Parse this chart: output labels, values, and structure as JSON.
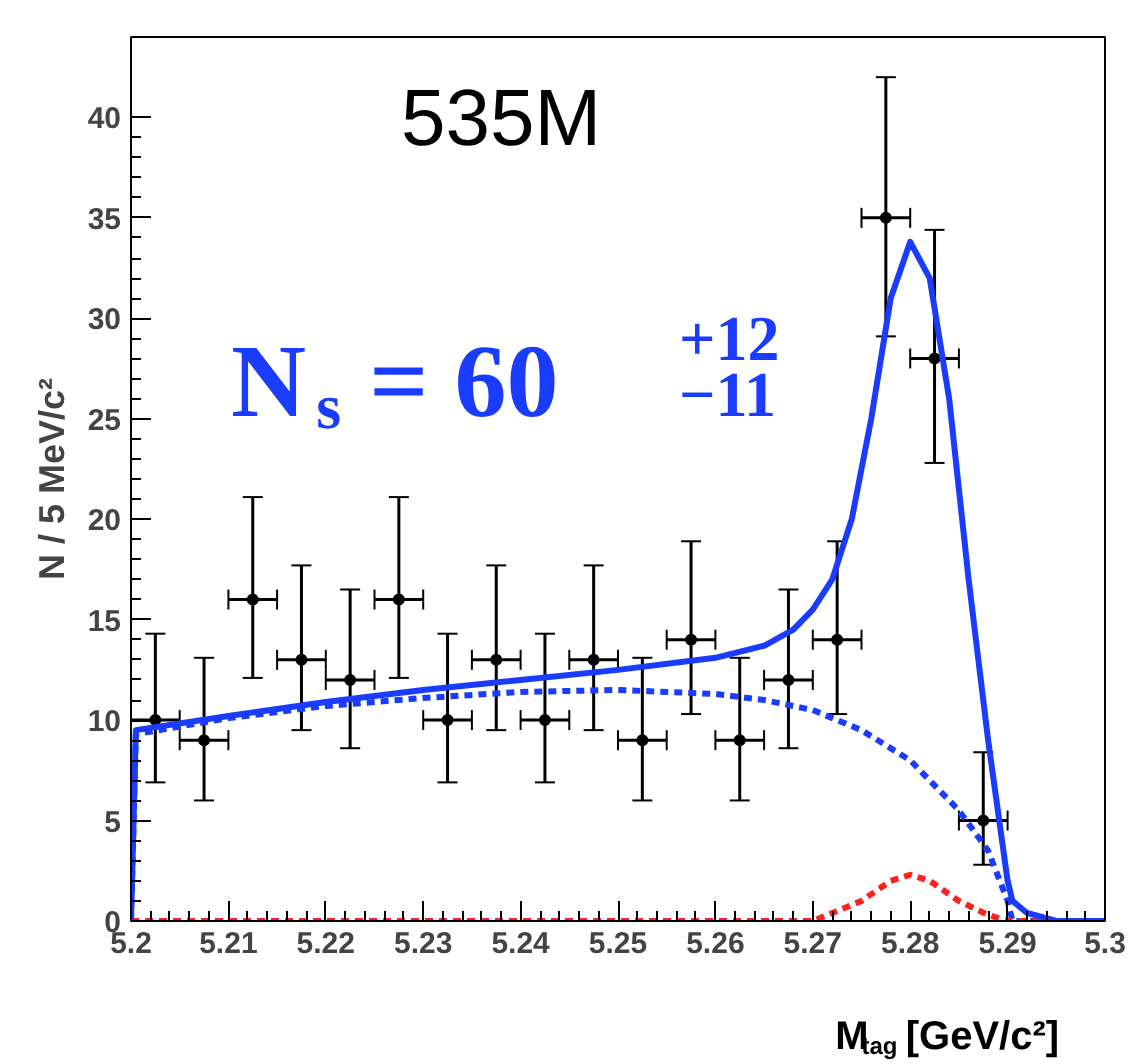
{
  "chart_data": {
    "type": "scatter",
    "xlabel": "M$_{tag}$ [GeV/c²]",
    "ylabel": "N / 5 MeV/c²",
    "annotations": [
      "535M",
      "N$_{s}$= 60$^{+12}$$_{−11}$"
    ],
    "xlim": [
      5.2,
      5.3
    ],
    "ylim": [
      0,
      44
    ],
    "xticks": [
      5.2,
      5.21,
      5.22,
      5.23,
      5.24,
      5.25,
      5.26,
      5.27,
      5.28,
      5.29,
      5.3
    ],
    "yticks": [
      0,
      5,
      10,
      15,
      20,
      25,
      30,
      35,
      40
    ],
    "grid": false,
    "series": [
      {
        "color": "#000000",
        "marker": "circle",
        "x": [
          5.2025,
          5.2075,
          5.2125,
          5.2175,
          5.2225,
          5.2275,
          5.2325,
          5.2375,
          5.2425,
          5.2475,
          5.2525,
          5.2575,
          5.2625,
          5.2675,
          5.2725,
          5.2775,
          5.2825,
          5.2875
        ],
        "values": [
          10,
          9,
          16,
          13,
          12,
          16,
          10,
          13,
          10,
          13,
          9,
          14,
          9,
          12,
          14,
          35,
          28,
          5
        ],
        "errors": [
          [
            6.9,
            14.3
          ],
          [
            6.0,
            13.1
          ],
          [
            12.1,
            21.1
          ],
          [
            9.5,
            17.7
          ],
          [
            8.6,
            16.5
          ],
          [
            12.1,
            21.1
          ],
          [
            6.9,
            14.3
          ],
          [
            9.5,
            17.7
          ],
          [
            6.9,
            14.3
          ],
          [
            9.5,
            17.7
          ],
          [
            6.0,
            13.1
          ],
          [
            10.3,
            18.9
          ],
          [
            6.0,
            13.1
          ],
          [
            8.6,
            16.5
          ],
          [
            10.3,
            18.9
          ],
          [
            29.1,
            42.0
          ],
          [
            22.8,
            34.4
          ],
          [
            2.8,
            8.4
          ]
        ],
        "xerrors": [
          0.0025,
          0.0025,
          0.0025,
          0.0025,
          0.0025,
          0.0025,
          0.0025,
          0.0025,
          0.0025,
          0.0025,
          0.0025,
          0.0025,
          0.0025,
          0.0025,
          0.0025,
          0.0025,
          0.0025,
          0.0025
        ]
      },
      {
        "type": "line",
        "color": "#1a3cff",
        "line_style": "dashed",
        "x": [
          5.2,
          5.2005,
          5.21,
          5.22,
          5.23,
          5.24,
          5.25,
          5.26,
          5.265,
          5.27,
          5.275,
          5.28,
          5.285,
          5.288,
          5.29,
          5.2905,
          5.3
        ],
        "values": [
          0,
          9.3,
          10.1,
          10.7,
          11.1,
          11.4,
          11.5,
          11.3,
          11.0,
          10.5,
          9.5,
          8.0,
          5.5,
          3.5,
          1.0,
          0,
          0
        ]
      },
      {
        "type": "line",
        "color": "#ff2020",
        "line_style": "dashed",
        "x": [
          5.2,
          5.27,
          5.272,
          5.275,
          5.278,
          5.28,
          5.282,
          5.285,
          5.288,
          5.29,
          5.295,
          5.3
        ],
        "values": [
          0,
          0,
          0.4,
          1.0,
          2.0,
          2.3,
          2.0,
          1.0,
          0.3,
          0,
          0,
          0
        ]
      },
      {
        "type": "line",
        "color": "#1a3cff",
        "line_style": "solid",
        "x": [
          5.2,
          5.2005,
          5.21,
          5.22,
          5.23,
          5.24,
          5.25,
          5.26,
          5.265,
          5.268,
          5.27,
          5.272,
          5.274,
          5.276,
          5.278,
          5.28,
          5.282,
          5.284,
          5.286,
          5.288,
          5.29,
          5.2905,
          5.292,
          5.295,
          5.3
        ],
        "values": [
          0,
          9.5,
          10.2,
          10.9,
          11.5,
          12.0,
          12.5,
          13.1,
          13.7,
          14.5,
          15.5,
          17,
          20,
          25,
          31,
          33.8,
          32,
          26,
          17,
          9,
          2,
          1,
          0.4,
          0,
          0
        ]
      }
    ]
  }
}
